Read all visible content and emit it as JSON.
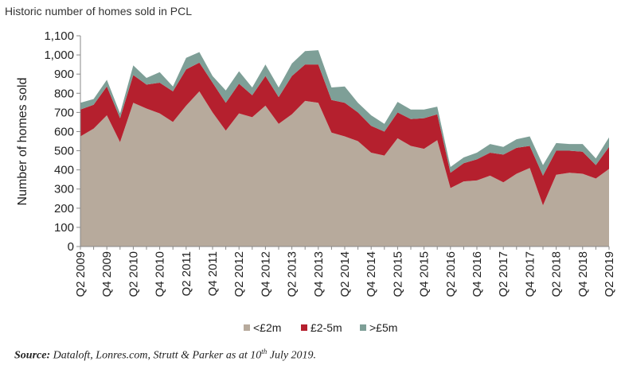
{
  "title": "Historic number of homes sold in PCL",
  "source": {
    "label": "Source:",
    "pre": "Dataloft, Lonres.com, Strutt & Parker as at 10",
    "sup": "th",
    "post": " July  2019."
  },
  "chart_data": {
    "type": "area",
    "stacked": true,
    "title": "Historic number of homes sold in PCL",
    "ylabel": "Number of homes sold",
    "xlabel": "",
    "ylim": [
      0,
      1100
    ],
    "yticks": [
      0,
      100,
      200,
      300,
      400,
      500,
      600,
      700,
      800,
      900,
      1000,
      1100
    ],
    "ytick_labels": [
      "0",
      "100",
      "200",
      "300",
      "400",
      "500",
      "600",
      "700",
      "800",
      "900",
      "1,000",
      "1,100"
    ],
    "x_tick_labels": [
      "Q2 2009",
      "Q4 2009",
      "Q2 2010",
      "Q4 2010",
      "Q2 2011",
      "Q4 2011",
      "Q2 2012",
      "Q4 2012",
      "Q2 2013",
      "Q4 2013",
      "Q2 2014",
      "Q4 2014",
      "Q2 2015",
      "Q4 2015",
      "Q2 2016",
      "Q4 2016",
      "Q2 2017",
      "Q4 2017",
      "Q2 2018",
      "Q4 2018",
      "Q2 2019"
    ],
    "legend_position": "bottom",
    "series": [
      {
        "name": "<£2m",
        "color": "#b7aa9c",
        "values": [
          575,
          615,
          685,
          545,
          750,
          720,
          695,
          650,
          735,
          810,
          700,
          605,
          695,
          675,
          735,
          640,
          690,
          760,
          750,
          595,
          575,
          550,
          490,
          475,
          565,
          525,
          510,
          555,
          305,
          340,
          345,
          370,
          335,
          380,
          410,
          215,
          375,
          385,
          380,
          355,
          405
        ]
      },
      {
        "name": "£2-5m",
        "color": "#b5202e",
        "values": [
          140,
          125,
          150,
          125,
          145,
          125,
          160,
          160,
          190,
          150,
          155,
          145,
          155,
          115,
          155,
          140,
          200,
          190,
          200,
          170,
          175,
          150,
          140,
          125,
          135,
          140,
          160,
          135,
          80,
          95,
          110,
          120,
          145,
          135,
          115,
          155,
          125,
          115,
          115,
          70,
          115
        ]
      },
      {
        "name": ">£5m",
        "color": "#7e9f97",
        "values": [
          35,
          30,
          35,
          25,
          50,
          35,
          55,
          25,
          60,
          55,
          35,
          65,
          65,
          40,
          60,
          50,
          65,
          70,
          75,
          65,
          85,
          50,
          55,
          40,
          55,
          50,
          45,
          40,
          30,
          30,
          35,
          45,
          40,
          45,
          50,
          55,
          40,
          35,
          40,
          35,
          50
        ]
      }
    ]
  }
}
